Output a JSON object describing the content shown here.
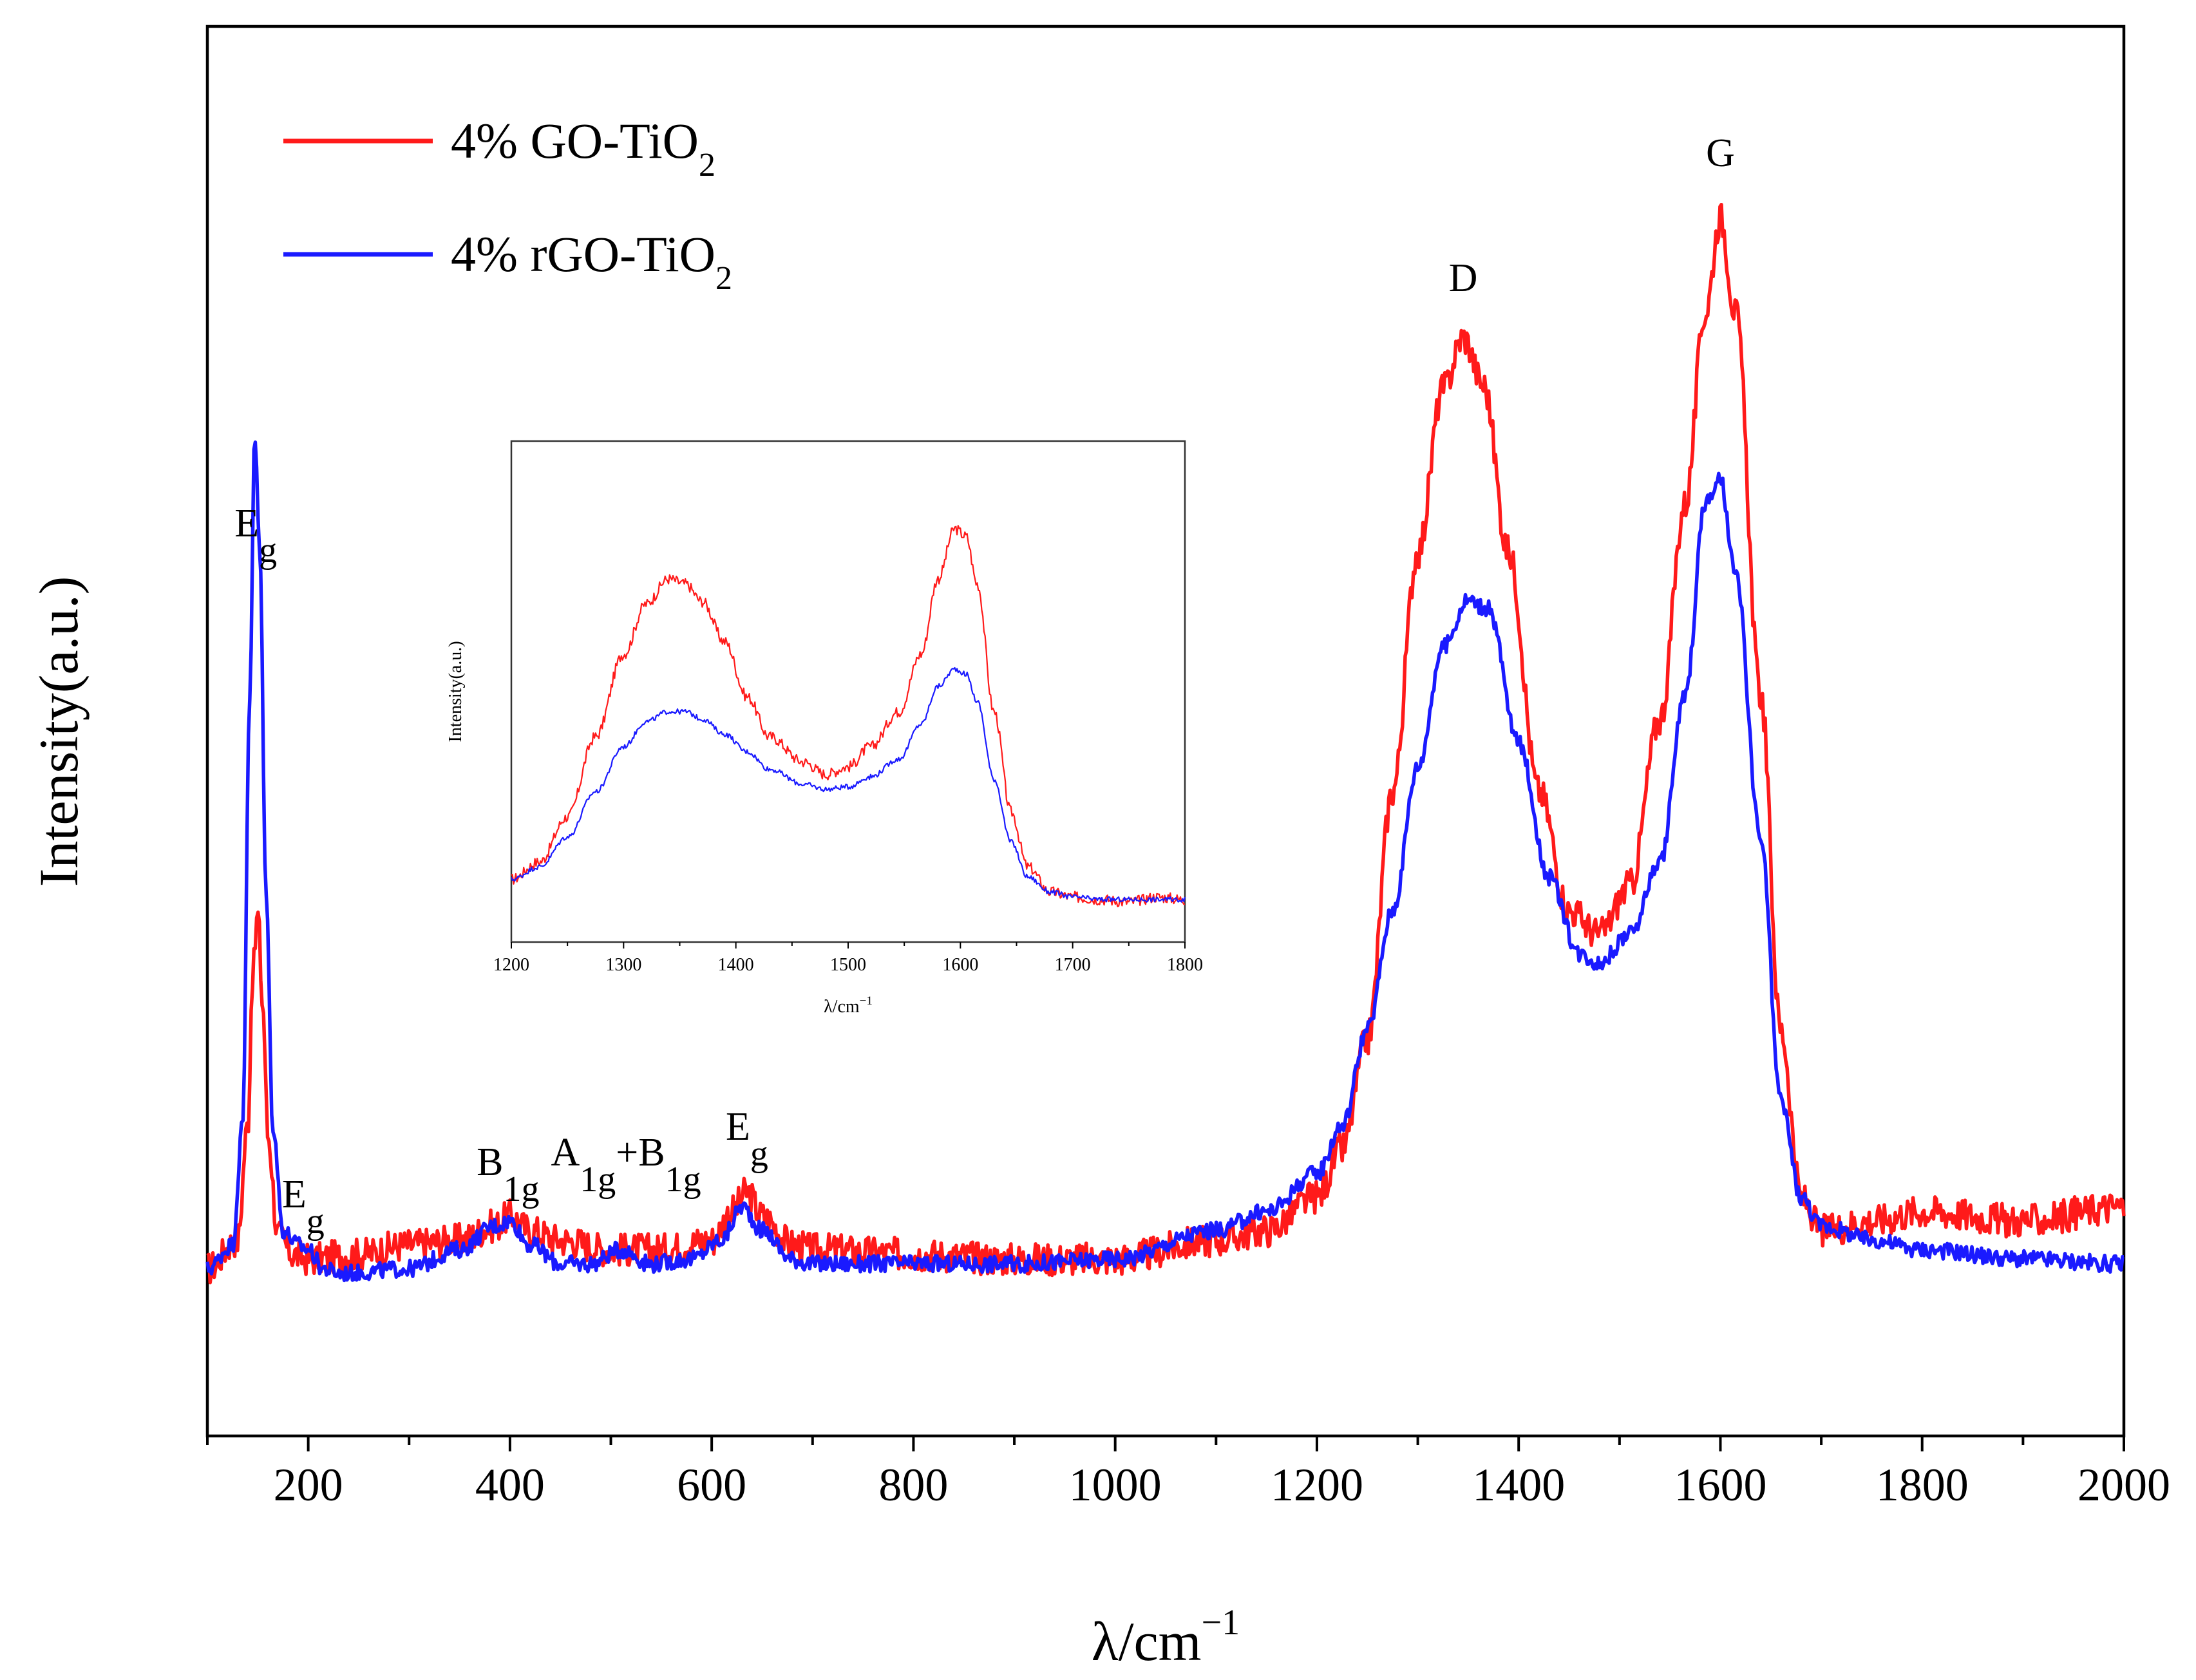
{
  "chart_data": [
    {
      "type": "line",
      "xlabel_base": "λ/cm",
      "xlabel_sup": "−1",
      "ylabel": "Intensity(a.u.)",
      "xlim": [
        100,
        2000
      ],
      "ylim": [
        -0.35,
        2.6
      ],
      "yticks_shown": false,
      "xticks": [
        200,
        400,
        600,
        800,
        1000,
        1200,
        1400,
        1600,
        1800,
        2000
      ],
      "xtick_labels": [
        "200",
        "400",
        "600",
        "800",
        "1000",
        "1200",
        "1400",
        "1600",
        "1800",
        "2000"
      ],
      "grid": false,
      "legend_position": "top-left",
      "legend": [
        {
          "base": "4% GO-TiO",
          "sub": "2",
          "color": "#ff1a1a"
        },
        {
          "base": "4% rGO-TiO",
          "sub": "2",
          "color": "#1a1aff"
        }
      ],
      "series": [
        {
          "name": "4% GO-TiO2",
          "color": "#ff1a1a",
          "x": [
            100,
            130,
            140,
            145,
            150,
            155,
            160,
            170,
            185,
            200,
            250,
            300,
            350,
            385,
            400,
            420,
            450,
            500,
            550,
            600,
            620,
            635,
            650,
            680,
            700,
            800,
            900,
            1000,
            1100,
            1150,
            1200,
            1225,
            1250,
            1275,
            1300,
            1325,
            1345,
            1365,
            1390,
            1420,
            1450,
            1480,
            1510,
            1540,
            1565,
            1585,
            1600,
            1615,
            1640,
            1660,
            1680,
            1700,
            1750,
            1800,
            1900,
            2000
          ],
          "y": [
            0.0,
            0.06,
            0.3,
            0.62,
            0.74,
            0.55,
            0.28,
            0.07,
            0.03,
            0.02,
            0.03,
            0.05,
            0.06,
            0.09,
            0.11,
            0.08,
            0.06,
            0.04,
            0.04,
            0.06,
            0.12,
            0.16,
            0.11,
            0.05,
            0.04,
            0.03,
            0.02,
            0.02,
            0.06,
            0.08,
            0.15,
            0.25,
            0.48,
            1.0,
            1.5,
            1.84,
            1.95,
            1.85,
            1.5,
            1.0,
            0.75,
            0.7,
            0.8,
            1.15,
            1.6,
            2.0,
            2.2,
            2.0,
            1.2,
            0.5,
            0.15,
            0.08,
            0.1,
            0.12,
            0.1,
            0.13
          ]
        },
        {
          "name": "4% rGO-TiO2",
          "color": "#1a1aff",
          "x": [
            100,
            125,
            135,
            142,
            147,
            152,
            158,
            165,
            175,
            190,
            200,
            215,
            230,
            300,
            350,
            385,
            400,
            420,
            450,
            480,
            510,
            540,
            580,
            610,
            630,
            650,
            680,
            700,
            800,
            900,
            1000,
            1100,
            1150,
            1200,
            1225,
            1250,
            1275,
            1300,
            1325,
            1350,
            1370,
            1400,
            1430,
            1460,
            1480,
            1510,
            1540,
            1565,
            1585,
            1600,
            1615,
            1640,
            1660,
            1680,
            1700,
            1750,
            1800,
            1900,
            2000
          ],
          "y": [
            0.0,
            0.05,
            0.3,
            1.2,
            1.74,
            1.5,
            0.8,
            0.3,
            0.08,
            0.05,
            0.04,
            0.0,
            -0.01,
            0.0,
            0.04,
            0.09,
            0.1,
            0.05,
            0.01,
            0.01,
            0.04,
            0.01,
            0.02,
            0.06,
            0.13,
            0.08,
            0.02,
            0.01,
            0.01,
            0.01,
            0.02,
            0.08,
            0.12,
            0.2,
            0.3,
            0.5,
            0.75,
            1.05,
            1.3,
            1.4,
            1.38,
            1.1,
            0.82,
            0.66,
            0.64,
            0.7,
            0.85,
            1.2,
            1.6,
            1.65,
            1.45,
            0.9,
            0.35,
            0.15,
            0.09,
            0.06,
            0.04,
            0.02,
            0.01
          ]
        }
      ],
      "annotations": [
        {
          "id": "eg-1",
          "base": "E",
          "sub": "g",
          "x": 148
        },
        {
          "id": "eg-2",
          "base": "E",
          "sub": "g",
          "x": 195
        },
        {
          "id": "b1g",
          "base": "B",
          "sub": "1g",
          "x": 398
        },
        {
          "id": "a1g-b1g",
          "base": "A",
          "sub": "1g",
          "mid": "+B",
          "sub2": "1g",
          "x": 515
        },
        {
          "id": "eg-3",
          "base": "E",
          "sub": "g",
          "x": 635
        },
        {
          "id": "d-band",
          "base": "D",
          "x": 1345
        },
        {
          "id": "g-band",
          "base": "G",
          "x": 1600
        }
      ]
    },
    {
      "type": "line",
      "inset": true,
      "xlabel_base": "λ/cm",
      "xlabel_sup": "−1",
      "ylabel": "Intensity(a.u.)",
      "xlim": [
        1200,
        1800
      ],
      "ylim": [
        -0.1,
        1.9
      ],
      "yticks_shown": false,
      "xticks": [
        1200,
        1300,
        1400,
        1500,
        1600,
        1700,
        1800
      ],
      "xtick_labels": [
        "1200",
        "1300",
        "1400",
        "1500",
        "1600",
        "1700",
        "1800"
      ],
      "grid": false,
      "series": [
        {
          "name": "4% GO-TiO2",
          "color": "#ff1a1a",
          "x": [
            1200,
            1225,
            1250,
            1275,
            1300,
            1320,
            1340,
            1355,
            1370,
            1390,
            1410,
            1430,
            1460,
            1480,
            1500,
            1520,
            1545,
            1565,
            1580,
            1595,
            1605,
            1615,
            1630,
            1645,
            1660,
            1680,
            1700,
            1725,
            1750,
            1775,
            1800
          ],
          "y": [
            0.15,
            0.22,
            0.4,
            0.72,
            1.05,
            1.25,
            1.35,
            1.33,
            1.26,
            1.1,
            0.88,
            0.72,
            0.62,
            0.57,
            0.6,
            0.68,
            0.82,
            1.05,
            1.35,
            1.55,
            1.52,
            1.33,
            0.82,
            0.42,
            0.2,
            0.1,
            0.08,
            0.07,
            0.06,
            0.08,
            0.07
          ]
        },
        {
          "name": "4% rGO-TiO2",
          "color": "#1a1aff",
          "x": [
            1200,
            1225,
            1250,
            1275,
            1300,
            1320,
            1340,
            1355,
            1370,
            1390,
            1410,
            1430,
            1460,
            1480,
            1500,
            1520,
            1545,
            1565,
            1580,
            1595,
            1605,
            1615,
            1630,
            1645,
            1660,
            1680,
            1700,
            1725,
            1750,
            1775,
            1800
          ],
          "y": [
            0.15,
            0.2,
            0.32,
            0.5,
            0.68,
            0.78,
            0.82,
            0.82,
            0.79,
            0.73,
            0.66,
            0.59,
            0.53,
            0.51,
            0.52,
            0.56,
            0.63,
            0.77,
            0.92,
            0.99,
            0.97,
            0.86,
            0.55,
            0.3,
            0.16,
            0.1,
            0.08,
            0.07,
            0.07,
            0.07,
            0.07
          ]
        }
      ]
    }
  ]
}
